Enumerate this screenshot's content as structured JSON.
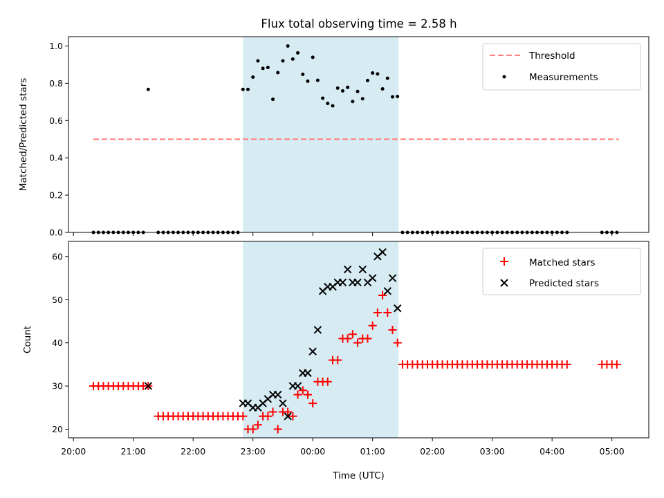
{
  "title": "Flux total observing time = 2.58 h",
  "colors": {
    "threshold": "#ff7f7f",
    "measurements": "#000000",
    "matched": "#ff0000",
    "predicted": "#000000",
    "highlight": "#add8e6"
  },
  "chart_data": [
    {
      "type": "scatter",
      "ylabel": "Matched/Predicted stars",
      "xlabel": "",
      "xlim": [
        "19:55",
        "29:37"
      ],
      "ylim": [
        0,
        1.05
      ],
      "yticks": [
        0.0,
        0.2,
        0.4,
        0.6,
        0.8,
        1.0
      ],
      "ytick_labels": [
        "0.0",
        "0.2",
        "0.4",
        "0.6",
        "0.8",
        "1.0"
      ],
      "highlight_span": [
        "22:50",
        "01:26"
      ],
      "legend_position": "upper right",
      "legend": {
        "threshold": "Threshold",
        "measurements": "Measurements"
      },
      "threshold": {
        "value": 0.5,
        "x_range": [
          "20:20",
          "05:07"
        ]
      },
      "measurements": {
        "time": [
          "20:20",
          "20:25",
          "20:30",
          "20:35",
          "20:40",
          "20:45",
          "20:50",
          "20:55",
          "21:00",
          "21:05",
          "21:10",
          "21:15",
          "21:25",
          "21:30",
          "21:35",
          "21:40",
          "21:45",
          "21:50",
          "21:55",
          "22:00",
          "22:05",
          "22:10",
          "22:15",
          "22:20",
          "22:25",
          "22:30",
          "22:35",
          "22:40",
          "22:45",
          "22:50",
          "22:55",
          "23:00",
          "23:05",
          "23:10",
          "23:15",
          "23:20",
          "23:25",
          "23:30",
          "23:35",
          "23:40",
          "23:45",
          "23:50",
          "23:55",
          "00:00",
          "00:05",
          "00:10",
          "00:15",
          "00:20",
          "00:25",
          "00:30",
          "00:35",
          "00:40",
          "00:45",
          "00:50",
          "00:55",
          "01:00",
          "01:05",
          "01:10",
          "01:15",
          "01:20",
          "01:25",
          "01:30",
          "01:35",
          "01:40",
          "01:45",
          "01:50",
          "01:55",
          "02:00",
          "02:05",
          "02:10",
          "02:15",
          "02:20",
          "02:25",
          "02:30",
          "02:35",
          "02:40",
          "02:45",
          "02:50",
          "02:55",
          "03:00",
          "03:05",
          "03:10",
          "03:15",
          "03:20",
          "03:25",
          "03:30",
          "03:35",
          "03:40",
          "03:45",
          "03:50",
          "03:55",
          "04:00",
          "04:05",
          "04:10",
          "04:15",
          "04:50",
          "04:55",
          "05:00",
          "05:05"
        ],
        "value": [
          0,
          0,
          0,
          0,
          0,
          0,
          0,
          0,
          0,
          0,
          0,
          0.767,
          0,
          0,
          0,
          0,
          0,
          0,
          0,
          0,
          0,
          0,
          0,
          0,
          0,
          0,
          0,
          0,
          0,
          0.767,
          0.767,
          0.833,
          0.92,
          0.88,
          0.885,
          0.714,
          0.857,
          0.92,
          1.0,
          0.93,
          0.963,
          0.848,
          0.811,
          0.939,
          0.816,
          0.72,
          0.692,
          0.679,
          0.774,
          0.759,
          0.778,
          0.702,
          0.756,
          0.717,
          0.815,
          0.855,
          0.85,
          0.77,
          0.827,
          0.727,
          0.729,
          0,
          0,
          0,
          0,
          0,
          0,
          0,
          0,
          0,
          0,
          0,
          0,
          0,
          0,
          0,
          0,
          0,
          0,
          0,
          0,
          0,
          0,
          0,
          0,
          0,
          0,
          0,
          0,
          0,
          0,
          0,
          0,
          0,
          0,
          0,
          0,
          0,
          0
        ]
      }
    },
    {
      "type": "scatter",
      "ylabel": "Count",
      "xlabel": "Time (UTC)",
      "xlim": [
        "19:55",
        "29:37"
      ],
      "ylim": [
        18,
        63.5
      ],
      "yticks": [
        20,
        30,
        40,
        50,
        60
      ],
      "ytick_labels": [
        "20",
        "30",
        "40",
        "50",
        "60"
      ],
      "xtick_labels": [
        "20:00",
        "21:00",
        "22:00",
        "23:00",
        "00:00",
        "01:00",
        "02:00",
        "03:00",
        "04:00",
        "05:00"
      ],
      "highlight_span": [
        "22:50",
        "01:26"
      ],
      "legend_position": "upper right",
      "legend": {
        "matched": "Matched stars",
        "predicted": "Predicted stars"
      },
      "matched_stars": {
        "time": [
          "20:20",
          "20:25",
          "20:30",
          "20:35",
          "20:40",
          "20:45",
          "20:50",
          "20:55",
          "21:00",
          "21:05",
          "21:10",
          "21:15",
          "21:25",
          "21:30",
          "21:35",
          "21:40",
          "21:45",
          "21:50",
          "21:55",
          "22:00",
          "22:05",
          "22:10",
          "22:15",
          "22:20",
          "22:25",
          "22:30",
          "22:35",
          "22:40",
          "22:45",
          "22:50",
          "22:55",
          "23:00",
          "23:05",
          "23:10",
          "23:15",
          "23:20",
          "23:25",
          "23:30",
          "23:35",
          "23:40",
          "23:45",
          "23:50",
          "23:55",
          "00:00",
          "00:05",
          "00:10",
          "00:15",
          "00:20",
          "00:25",
          "00:30",
          "00:35",
          "00:40",
          "00:45",
          "00:50",
          "00:55",
          "01:00",
          "01:05",
          "01:10",
          "01:15",
          "01:20",
          "01:25",
          "01:30",
          "01:35",
          "01:40",
          "01:45",
          "01:50",
          "01:55",
          "02:00",
          "02:05",
          "02:10",
          "02:15",
          "02:20",
          "02:25",
          "02:30",
          "02:35",
          "02:40",
          "02:45",
          "02:50",
          "02:55",
          "03:00",
          "03:05",
          "03:10",
          "03:15",
          "03:20",
          "03:25",
          "03:30",
          "03:35",
          "03:40",
          "03:45",
          "03:50",
          "03:55",
          "04:00",
          "04:05",
          "04:10",
          "04:15",
          "04:50",
          "04:55",
          "05:00",
          "05:05"
        ],
        "value": [
          30,
          30,
          30,
          30,
          30,
          30,
          30,
          30,
          30,
          30,
          30,
          30,
          23,
          23,
          23,
          23,
          23,
          23,
          23,
          23,
          23,
          23,
          23,
          23,
          23,
          23,
          23,
          23,
          23,
          23,
          20,
          20,
          21,
          23,
          23,
          24,
          20,
          24,
          24,
          23,
          28,
          29,
          28,
          26,
          31,
          31,
          31,
          36,
          36,
          41,
          41,
          42,
          40,
          41,
          41,
          44,
          47,
          51,
          47,
          43,
          40,
          35,
          35,
          35,
          35,
          35,
          35,
          35,
          35,
          35,
          35,
          35,
          35,
          35,
          35,
          35,
          35,
          35,
          35,
          35,
          35,
          35,
          35,
          35,
          35,
          35,
          35,
          35,
          35,
          35,
          35,
          35,
          35,
          35,
          35,
          35,
          35,
          35,
          35
        ]
      },
      "predicted_stars": {
        "time": [
          "21:15",
          "22:50",
          "22:55",
          "23:00",
          "23:05",
          "23:10",
          "23:15",
          "23:20",
          "23:25",
          "23:30",
          "23:35",
          "23:40",
          "23:45",
          "23:50",
          "23:55",
          "00:00",
          "00:05",
          "00:10",
          "00:15",
          "00:20",
          "00:25",
          "00:30",
          "00:35",
          "00:40",
          "00:45",
          "00:50",
          "00:55",
          "01:00",
          "01:05",
          "01:10",
          "01:15",
          "01:20",
          "01:25"
        ],
        "value": [
          30,
          26,
          26,
          25,
          25,
          26,
          27,
          28,
          28,
          26,
          23,
          30,
          30,
          33,
          33,
          38,
          43,
          52,
          53,
          53,
          54,
          54,
          57,
          54,
          54,
          57,
          54,
          55,
          60,
          61,
          52,
          55,
          48
        ]
      }
    }
  ]
}
